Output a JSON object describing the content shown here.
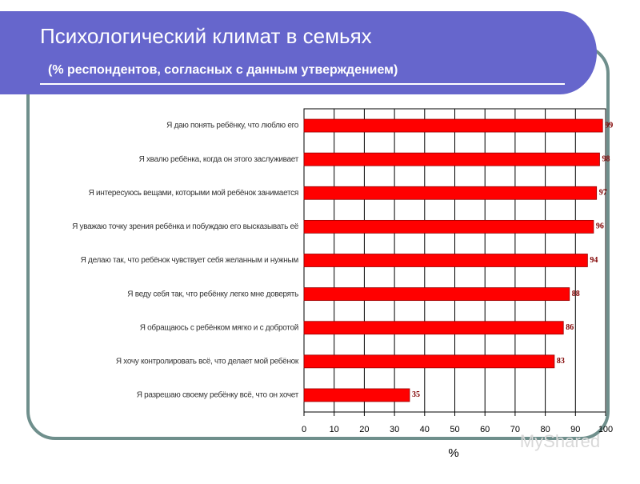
{
  "chart_data": {
    "type": "bar",
    "orientation": "horizontal",
    "title": "Психологический климат в семьях",
    "subtitle": "(% респондентов, согласных с данным утверждением)",
    "x_label": "%",
    "categories": [
      "Я даю понять ребёнку, что люблю его",
      "Я хвалю ребёнка, когда он этого заслуживает",
      "Я интересуюсь вещами, которыми мой ребёнок занимается",
      "Я уважаю точку зрения ребёнка и побуждаю его  высказывать её",
      "Я делаю так, что ребёнок чувствует себя желанным и нужным",
      "Я веду себя так, что ребёнку легко мне доверять",
      "Я обращаюсь с ребёнком мягко и с добротой",
      "Я хочу контролировать всё, что делает мой ребёнок",
      "Я разрешаю своему ребёнку всё, что он хочет"
    ],
    "values": [
      99,
      98,
      97,
      96,
      94,
      88,
      86,
      83,
      35
    ],
    "color": "#ff0000",
    "xlim": [
      0,
      100
    ],
    "xticks": [
      0,
      10,
      20,
      30,
      40,
      50,
      60,
      70,
      80,
      90,
      100
    ],
    "grid": true,
    "watermark": "MyShared"
  }
}
